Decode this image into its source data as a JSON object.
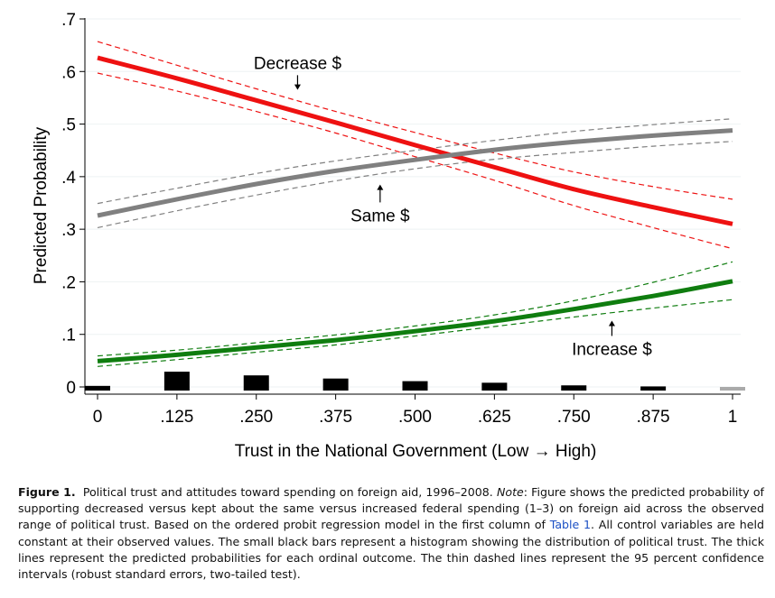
{
  "chart_data": {
    "type": "line",
    "xlabel": "Trust in the National Government (Low → High)",
    "ylabel": "Predicted Probability",
    "xlim": [
      0,
      1
    ],
    "ylim": [
      0,
      0.7
    ],
    "x_ticks": [
      0,
      0.125,
      0.25,
      0.375,
      0.5,
      0.625,
      0.75,
      0.875,
      1
    ],
    "x_tick_labels": [
      "0",
      ".125",
      ".250",
      ".375",
      ".500",
      ".625",
      ".750",
      ".875",
      "1"
    ],
    "y_ticks": [
      0,
      0.1,
      0.2,
      0.3,
      0.4,
      0.5,
      0.6,
      0.7
    ],
    "y_tick_labels": [
      "0",
      ".1",
      ".2",
      ".3",
      ".4",
      ".5",
      ".6",
      ".7"
    ],
    "grid": true,
    "series": [
      {
        "name": "Decrease $",
        "color": "#ee1111",
        "x": [
          0,
          0.125,
          0.25,
          0.375,
          0.5,
          0.625,
          0.75,
          0.875,
          1
        ],
        "y": [
          0.626,
          0.587,
          0.545,
          0.503,
          0.46,
          0.418,
          0.376,
          0.342,
          0.31
        ],
        "ci_lower": [
          0.597,
          0.563,
          0.524,
          0.483,
          0.438,
          0.393,
          0.345,
          0.303,
          0.263
        ],
        "ci_upper": [
          0.657,
          0.612,
          0.567,
          0.524,
          0.484,
          0.445,
          0.409,
          0.381,
          0.357
        ]
      },
      {
        "name": "Same $",
        "color": "#808080",
        "x": [
          0,
          0.125,
          0.25,
          0.375,
          0.5,
          0.625,
          0.75,
          0.875,
          1
        ],
        "y": [
          0.326,
          0.357,
          0.386,
          0.411,
          0.432,
          0.451,
          0.466,
          0.478,
          0.488
        ],
        "ci_lower": [
          0.303,
          0.335,
          0.365,
          0.392,
          0.415,
          0.433,
          0.446,
          0.458,
          0.467
        ],
        "ci_upper": [
          0.349,
          0.378,
          0.406,
          0.43,
          0.45,
          0.469,
          0.486,
          0.499,
          0.51
        ]
      },
      {
        "name": "Increase $",
        "color": "#0f7d0f",
        "x": [
          0,
          0.125,
          0.25,
          0.375,
          0.5,
          0.625,
          0.75,
          0.875,
          1
        ],
        "y": [
          0.049,
          0.061,
          0.075,
          0.089,
          0.106,
          0.125,
          0.148,
          0.173,
          0.201
        ],
        "ci_lower": [
          0.039,
          0.052,
          0.066,
          0.08,
          0.097,
          0.115,
          0.133,
          0.15,
          0.166
        ],
        "ci_upper": [
          0.059,
          0.07,
          0.084,
          0.099,
          0.116,
          0.137,
          0.164,
          0.199,
          0.238
        ]
      }
    ],
    "histogram": {
      "x": [
        0,
        0.125,
        0.25,
        0.375,
        0.5,
        0.625,
        0.75,
        0.875,
        1
      ],
      "heights": [
        0.002,
        0.029,
        0.022,
        0.016,
        0.011,
        0.008,
        0.003,
        0.001,
        0.0
      ]
    },
    "annotations": [
      {
        "text": "Decrease $",
        "x": 0.315,
        "y": 0.617,
        "arrow_to": [
          0.315,
          0.565
        ]
      },
      {
        "text": "Same $",
        "x": 0.445,
        "y": 0.327,
        "arrow_to": [
          0.445,
          0.385
        ]
      },
      {
        "text": "Increase $",
        "x": 0.81,
        "y": 0.073,
        "arrow_to": [
          0.81,
          0.126
        ]
      }
    ]
  },
  "caption": {
    "label": "Figure 1.",
    "text_1": "Political trust and attitudes toward spending on foreign aid, 1996–2008.",
    "note_label": "Note",
    "text_2": ": Figure shows the predicted probability of supporting decreased versus kept about the same versus increased federal spending (1–3) on foreign aid across the observed range of political trust. Based on the ordered probit regression model in the first column of",
    "link": "Table 1",
    "text_3": ". All control variables are held constant at their observed values. The small black bars represent a histogram showing the distribution of political trust. The thick lines represent the predicted probabilities for each ordinal outcome. The thin dashed lines represent the 95 percent confidence intervals (robust standard errors, two-tailed test)."
  }
}
